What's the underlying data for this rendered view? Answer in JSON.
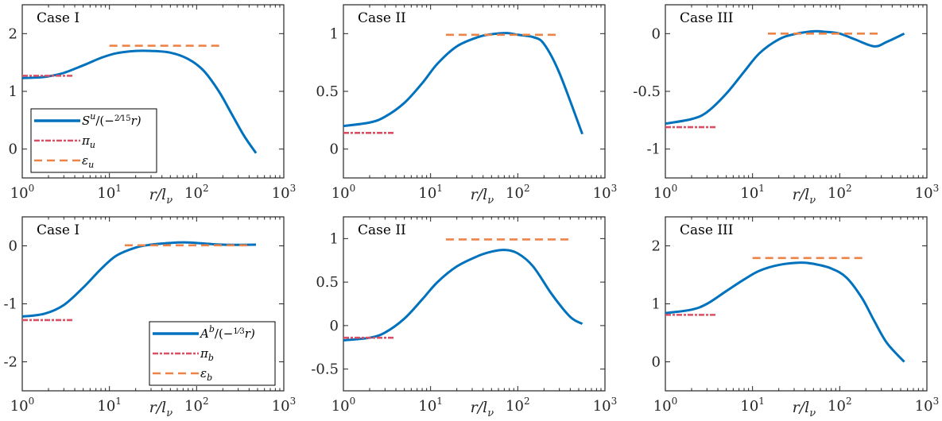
{
  "colors": {
    "curve": "#0072BD",
    "pi": "#D95064",
    "eps": "#EE8347",
    "axis": "#262626"
  },
  "shared": {
    "xlabel": "r/l_ν",
    "xlabel_main": "r/l",
    "xlabel_sub": "ν",
    "x_scale": "log",
    "xlim": [
      1,
      1000
    ],
    "xtick_labels": [
      {
        "base": "10",
        "exp": "0"
      },
      {
        "base": "10",
        "exp": "1"
      },
      {
        "base": "10",
        "exp": "2"
      },
      {
        "base": "10",
        "exp": "3"
      }
    ]
  },
  "chart_data": [
    {
      "type": "line",
      "panel": "top-left",
      "title": "Case I",
      "xlabel": "r/l_ν",
      "ylim": [
        -0.5,
        2.5
      ],
      "yticks": [
        0,
        1,
        2
      ],
      "ytick_labels": [
        "0",
        "1",
        "2"
      ],
      "legend": {
        "placement": "bottom-left",
        "entries": [
          {
            "series": "curve",
            "main": "S",
            "sup": "u",
            "rest": "/(−",
            "frac_num": "2",
            "frac_den": "15",
            "tail": "r)"
          },
          {
            "series": "pi",
            "main": "π",
            "sub": "u"
          },
          {
            "series": "eps",
            "main": "ε",
            "sub": "u"
          }
        ]
      },
      "series": [
        {
          "name": "S^u/(-2/15 r)",
          "style": "solid",
          "color_key": "curve",
          "x": [
            1,
            1.5,
            2,
            3,
            5,
            8,
            12,
            20,
            30,
            50,
            80,
            120,
            180,
            250,
            350,
            480
          ],
          "y": [
            1.23,
            1.24,
            1.26,
            1.32,
            1.45,
            1.58,
            1.66,
            1.7,
            1.7,
            1.67,
            1.56,
            1.36,
            1.0,
            0.62,
            0.23,
            -0.07
          ]
        },
        {
          "name": "π_u",
          "style": "dashdot",
          "color_key": "pi",
          "x": [
            1,
            3.8
          ],
          "y": [
            1.27,
            1.27
          ]
        },
        {
          "name": "ε_u",
          "style": "dashed",
          "color_key": "eps",
          "x": [
            10,
            200
          ],
          "y": [
            1.79,
            1.79
          ]
        }
      ]
    },
    {
      "type": "line",
      "panel": "top-middle",
      "title": "Case II",
      "xlabel": "r/l_ν",
      "ylim": [
        -0.25,
        1.25
      ],
      "yticks": [
        0,
        0.5,
        1
      ],
      "ytick_labels": [
        "0",
        "0.5",
        "1"
      ],
      "series": [
        {
          "name": "S^u/(-2/15 r)",
          "style": "solid",
          "color_key": "curve",
          "x": [
            1,
            2,
            3,
            5,
            8,
            12,
            20,
            35,
            50,
            75,
            100,
            150,
            200,
            300,
            550
          ],
          "y": [
            0.2,
            0.23,
            0.28,
            0.4,
            0.57,
            0.74,
            0.89,
            0.97,
            0.995,
            1.005,
            0.99,
            0.97,
            0.91,
            0.66,
            0.13
          ]
        },
        {
          "name": "π_u",
          "style": "dashdot",
          "color_key": "pi",
          "x": [
            1,
            3.8
          ],
          "y": [
            0.14,
            0.14
          ]
        },
        {
          "name": "ε_u",
          "style": "dashed",
          "color_key": "eps",
          "x": [
            15,
            300
          ],
          "y": [
            0.99,
            0.99
          ]
        }
      ]
    },
    {
      "type": "line",
      "panel": "top-right",
      "title": "Case III",
      "xlabel": "r/l_ν",
      "ylim": [
        -1.25,
        0.25
      ],
      "yticks": [
        -1,
        -0.5,
        0
      ],
      "ytick_labels": [
        "-1",
        "-0.5",
        "0"
      ],
      "series": [
        {
          "name": "S^u/(-2/15 r)",
          "style": "solid",
          "color_key": "curve",
          "x": [
            1,
            2,
            3,
            5,
            8,
            12,
            20,
            30,
            50,
            70,
            100,
            150,
            250,
            350,
            550
          ],
          "y": [
            -0.78,
            -0.74,
            -0.68,
            -0.52,
            -0.33,
            -0.17,
            -0.05,
            -0.005,
            0.02,
            0.015,
            0.0,
            -0.05,
            -0.11,
            -0.07,
            0.0
          ]
        },
        {
          "name": "π_u",
          "style": "dashdot",
          "color_key": "pi",
          "x": [
            1,
            3.8
          ],
          "y": [
            -0.81,
            -0.81
          ]
        },
        {
          "name": "ε_u",
          "style": "dashed",
          "color_key": "eps",
          "x": [
            15,
            300
          ],
          "y": [
            0.0,
            0.0
          ]
        }
      ]
    },
    {
      "type": "line",
      "panel": "bottom-left",
      "title": "Case I",
      "xlabel": "r/l_ν",
      "ylim": [
        -2.5,
        0.5
      ],
      "yticks": [
        -2,
        -1,
        0
      ],
      "ytick_labels": [
        "-2",
        "-1",
        "0"
      ],
      "legend": {
        "placement": "bottom-right",
        "entries": [
          {
            "series": "curve",
            "main": "A",
            "sup": "b",
            "rest": "/(−",
            "frac_num": "1",
            "frac_den": "3",
            "tail": "r)"
          },
          {
            "series": "pi",
            "main": "π",
            "sub": "b"
          },
          {
            "series": "eps",
            "main": "ε",
            "sub": "b"
          }
        ]
      },
      "series": [
        {
          "name": "A^b/(-1/3 r)",
          "style": "solid",
          "color_key": "curve",
          "x": [
            1,
            1.8,
            3,
            5,
            8,
            12,
            20,
            30,
            50,
            70,
            100,
            200,
            480
          ],
          "y": [
            -1.22,
            -1.17,
            -1.02,
            -0.72,
            -0.4,
            -0.17,
            -0.03,
            0.02,
            0.05,
            0.06,
            0.05,
            0.02,
            0.02
          ]
        },
        {
          "name": "π_b",
          "style": "dashdot",
          "color_key": "pi",
          "x": [
            1,
            3.8
          ],
          "y": [
            -1.28,
            -1.28
          ]
        },
        {
          "name": "ε_b",
          "style": "dashed",
          "color_key": "eps",
          "x": [
            15,
            400
          ],
          "y": [
            0.01,
            0.01
          ]
        }
      ]
    },
    {
      "type": "line",
      "panel": "bottom-middle",
      "title": "Case II",
      "xlabel": "r/l_ν",
      "ylim": [
        -0.75,
        1.25
      ],
      "yticks": [
        -0.5,
        0,
        0.5,
        1
      ],
      "ytick_labels": [
        "-0.5",
        "0",
        "0.5",
        "1"
      ],
      "series": [
        {
          "name": "A^b/(-1/3 r)",
          "style": "solid",
          "color_key": "curve",
          "x": [
            1,
            2,
            3,
            5,
            8,
            12,
            20,
            35,
            50,
            70,
            100,
            150,
            250,
            400,
            550
          ],
          "y": [
            -0.17,
            -0.14,
            -0.08,
            0.08,
            0.3,
            0.5,
            0.68,
            0.8,
            0.85,
            0.87,
            0.83,
            0.68,
            0.35,
            0.1,
            0.02
          ]
        },
        {
          "name": "π_b",
          "style": "dashdot",
          "color_key": "pi",
          "x": [
            1,
            3.8
          ],
          "y": [
            -0.14,
            -0.14
          ]
        },
        {
          "name": "ε_b",
          "style": "dashed",
          "color_key": "eps",
          "x": [
            15,
            400
          ],
          "y": [
            0.99,
            0.99
          ]
        }
      ]
    },
    {
      "type": "line",
      "panel": "bottom-right",
      "title": "Case III",
      "xlabel": "r/l_ν",
      "ylim": [
        -0.5,
        2.5
      ],
      "yticks": [
        0,
        1,
        2
      ],
      "ytick_labels": [
        "0",
        "1",
        "2"
      ],
      "series": [
        {
          "name": "A^b/(-1/3 r)",
          "style": "solid",
          "color_key": "curve",
          "x": [
            1,
            2,
            3,
            5,
            8,
            12,
            20,
            35,
            50,
            80,
            120,
            180,
            250,
            350,
            550
          ],
          "y": [
            0.84,
            0.9,
            1.0,
            1.22,
            1.42,
            1.57,
            1.67,
            1.71,
            1.69,
            1.61,
            1.45,
            1.1,
            0.7,
            0.32,
            0.0
          ]
        },
        {
          "name": "π_b",
          "style": "dashdot",
          "color_key": "pi",
          "x": [
            1,
            3.8
          ],
          "y": [
            0.81,
            0.81
          ]
        },
        {
          "name": "ε_b",
          "style": "dashed",
          "color_key": "eps",
          "x": [
            10,
            200
          ],
          "y": [
            1.79,
            1.79
          ]
        }
      ]
    }
  ]
}
